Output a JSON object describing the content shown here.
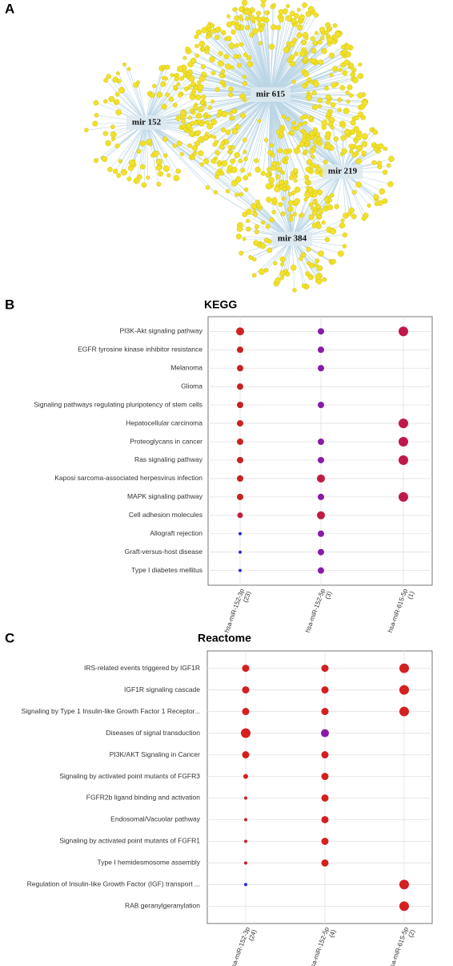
{
  "panel_labels": [
    "A",
    "B",
    "C"
  ],
  "network": {
    "hubs": [
      "mir 615",
      "mir 152",
      "mir 219",
      "mir 384"
    ]
  },
  "chart_data": [
    {
      "type": "dot",
      "title": "KEGG",
      "categories": [
        "PI3K-Akt signaling pathway",
        "EGFR tyrosine kinase inhibitor resistance",
        "Melanoma",
        "Glioma",
        "Signaling pathways regulating pluripotency of stem cells",
        "Hepatocellular carcinoma",
        "Proteoglycans in cancer",
        "Ras signaling pathway",
        "Kaposi sarcoma-associated herpesvirus infection",
        "MAPK signaling pathway",
        "Cell adhesion molecules",
        "Allograft rejection",
        "Graft-versus-host disease",
        "Type I diabetes mellitus"
      ],
      "series": [
        {
          "name": "hsa-miR-152-3p",
          "count": "(23)",
          "sizes": [
            5,
            4,
            4,
            4,
            4,
            4,
            4,
            4,
            4,
            4,
            3.5,
            2,
            2,
            2
          ],
          "colors": [
            "#d42020",
            "#c82222",
            "#c82222",
            "#c82222",
            "#c82222",
            "#c82222",
            "#c82222",
            "#c82222",
            "#c82222",
            "#c82222",
            "#c0203a",
            "#2a2ae0",
            "#2a2ae0",
            "#2a2ae0"
          ]
        },
        {
          "name": "hsa-miR-152-5p",
          "count": "(3)",
          "sizes": [
            4,
            4,
            4,
            null,
            4,
            null,
            4,
            4,
            5,
            4,
            5,
            4,
            4,
            4
          ],
          "colors": [
            "#8a1aa8",
            "#8a1aa8",
            "#8a1aa8",
            null,
            "#8a1aa8",
            null,
            "#8a1aa8",
            "#8a1aa8",
            "#c01c40",
            "#8a1aa8",
            "#c01c40",
            "#8a1aa8",
            "#8a1aa8",
            "#8a1aa8"
          ]
        },
        {
          "name": "hsa-miR-615-5p",
          "count": "(1)",
          "sizes": [
            6,
            null,
            null,
            null,
            null,
            6,
            6,
            6,
            null,
            6,
            null,
            null,
            null,
            null
          ],
          "colors": [
            "#c0184a",
            null,
            null,
            null,
            null,
            "#c0184a",
            "#c0184a",
            "#c0184a",
            null,
            "#c0184a",
            null,
            null,
            null,
            null
          ]
        }
      ],
      "grid": true
    },
    {
      "type": "dot",
      "title": "Reactome",
      "categories": [
        "IRS-related events triggered by IGF1R",
        "IGF1R signaling cascade",
        "Signaling by Type 1 Insulin-like Growth Factor 1 Receptor...",
        "Diseases of signal transduction",
        "PI3K/AKT Signaling in Cancer",
        "Signaling by activated point mutants of FGFR3",
        "FGFR2b ligand binding and activation",
        "Endosomal/Vacuolar pathway",
        "Signaling by activated point mutants of FGFR1",
        "Type I hemidesmosome assembly",
        "Regulation of Insulin-like Growth Factor (IGF) transport ...",
        "RAB geranylgeranylation"
      ],
      "series": [
        {
          "name": "hsa-miR-152-3p",
          "count": "(24)",
          "sizes": [
            4.5,
            4.5,
            4.5,
            6,
            4.5,
            3,
            2,
            2,
            2,
            2,
            2,
            null
          ],
          "colors": [
            "#d42020",
            "#d42020",
            "#d42020",
            "#d42020",
            "#d42020",
            "#d42020",
            "#c82030",
            "#c82030",
            "#c82030",
            "#c82030",
            "#2a2ae0",
            null
          ]
        },
        {
          "name": "hsa-miR-152-5p",
          "count": "(4)",
          "sizes": [
            4.5,
            4.5,
            4.5,
            5,
            4.5,
            4.5,
            4.5,
            4.5,
            4.5,
            4.5,
            null,
            null
          ],
          "colors": [
            "#d42020",
            "#d42020",
            "#d42020",
            "#8a1aa8",
            "#d42020",
            "#d42020",
            "#d42020",
            "#d42020",
            "#d42020",
            "#d42020",
            null,
            null
          ]
        },
        {
          "name": "hsa-miR-615-5p",
          "count": "(2)",
          "sizes": [
            6,
            6,
            6,
            null,
            null,
            null,
            null,
            null,
            null,
            null,
            6,
            6
          ],
          "colors": [
            "#d42020",
            "#d42020",
            "#d42020",
            null,
            null,
            null,
            null,
            null,
            null,
            null,
            "#d42020",
            "#d42020"
          ]
        }
      ],
      "grid": true
    }
  ]
}
